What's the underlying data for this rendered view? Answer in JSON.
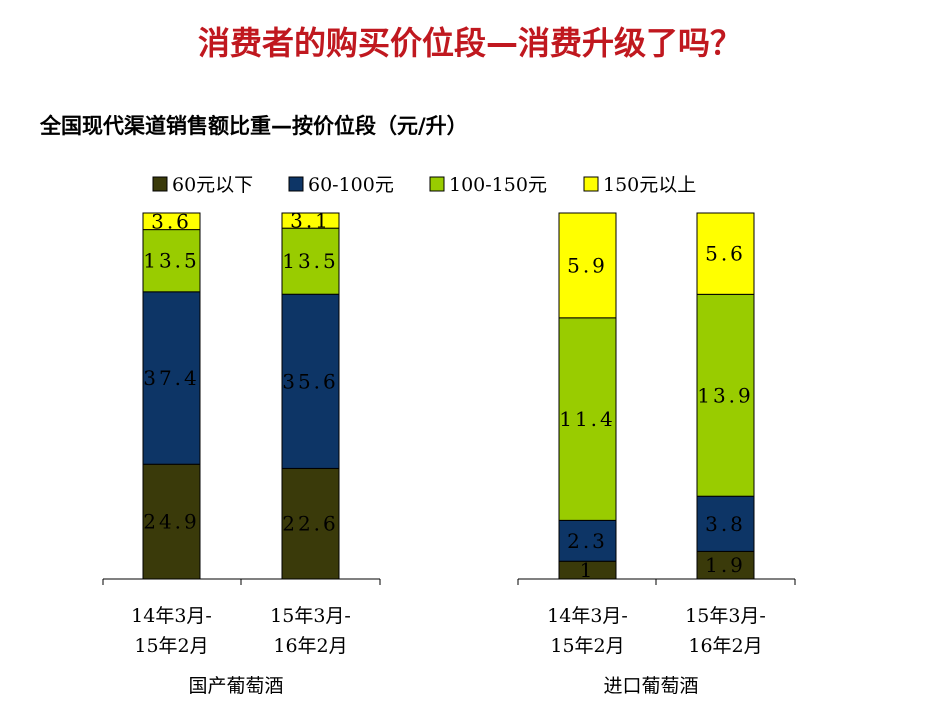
{
  "page": {
    "title": "消费者的购买价位段—消费升级了吗？",
    "subtitle": "全国现代渠道销售额比重—按价位段（元/升）"
  },
  "chart_data": {
    "type": "bar",
    "stacked": true,
    "normalized": true,
    "title": "全国现代渠道销售额比重—按价位段（元/升）",
    "xlabel": "",
    "ylabel": "",
    "legend_position": "top",
    "groups": [
      {
        "name": "国产葡萄酒",
        "bars": [
          {
            "label_line1": "14年3月-",
            "label_line2": "15年2月",
            "values": [
              24.9,
              37.4,
              13.5,
              3.6
            ]
          },
          {
            "label_line1": "15年3月-",
            "label_line2": "16年2月",
            "values": [
              22.6,
              35.6,
              13.5,
              3.1
            ]
          }
        ]
      },
      {
        "name": "进口葡萄酒",
        "bars": [
          {
            "label_line1": "14年3月-",
            "label_line2": "15年2月",
            "values": [
              1,
              2.3,
              11.4,
              5.9
            ]
          },
          {
            "label_line1": "15年3月-",
            "label_line2": "16年2月",
            "values": [
              1.9,
              3.8,
              13.9,
              5.6
            ]
          }
        ]
      }
    ],
    "series": [
      {
        "name": "60元以下",
        "color": "#3a3a0a"
      },
      {
        "name": "60-100元",
        "color": "#0d3566"
      },
      {
        "name": "100-150元",
        "color": "#99cc00"
      },
      {
        "name": "150元以上",
        "color": "#ffff00"
      }
    ]
  }
}
